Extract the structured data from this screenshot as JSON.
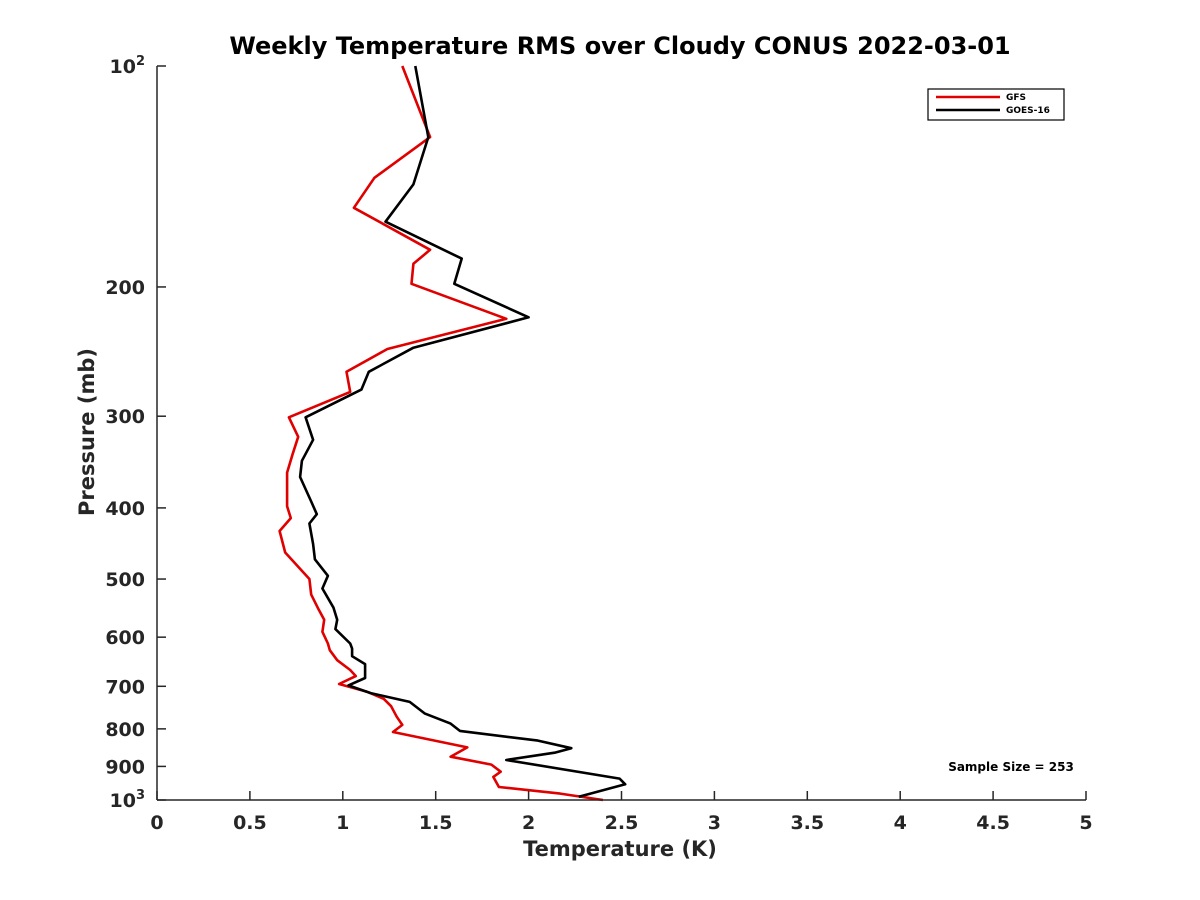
{
  "chart_data": {
    "type": "line",
    "title": "Weekly Temperature RMS over Cloudy CONUS 2022-03-01",
    "xlabel": "Temperature (K)",
    "ylabel": "Pressure (mb)",
    "xlim": [
      0,
      5
    ],
    "ylim": [
      1000,
      100
    ],
    "y_scale": "log",
    "y_reversed": true,
    "grid": false,
    "legend_position": "top-right",
    "x_ticks": [
      0,
      0.5,
      1,
      1.5,
      2,
      2.5,
      3,
      3.5,
      4,
      4.5,
      5
    ],
    "x_tick_labels": [
      "0",
      "0.5",
      "1",
      "1.5",
      "2",
      "2.5",
      "3",
      "3.5",
      "4",
      "4.5",
      "5"
    ],
    "y_ticks": [
      {
        "value": 100,
        "base": "10",
        "exp": "2"
      },
      {
        "value": 200,
        "label": "200"
      },
      {
        "value": 300,
        "label": "300"
      },
      {
        "value": 400,
        "label": "400"
      },
      {
        "value": 500,
        "label": "500"
      },
      {
        "value": 600,
        "label": "600"
      },
      {
        "value": 700,
        "label": "700"
      },
      {
        "value": 800,
        "label": "800"
      },
      {
        "value": 900,
        "label": "900"
      },
      {
        "value": 1000,
        "base": "10",
        "exp": "3"
      }
    ],
    "annotation": "Sample Size = 253",
    "series": [
      {
        "name": "GFS",
        "color": "#e00000",
        "points": [
          [
            1.32,
            100
          ],
          [
            1.47,
            125
          ],
          [
            1.17,
            142
          ],
          [
            1.06,
            156
          ],
          [
            1.47,
            178
          ],
          [
            1.38,
            186
          ],
          [
            1.37,
            198
          ],
          [
            1.88,
            221
          ],
          [
            1.24,
            243
          ],
          [
            1.02,
            261
          ],
          [
            1.04,
            278
          ],
          [
            0.71,
            301
          ],
          [
            0.76,
            320
          ],
          [
            0.73,
            338
          ],
          [
            0.7,
            358
          ],
          [
            0.7,
            380
          ],
          [
            0.7,
            398
          ],
          [
            0.72,
            413
          ],
          [
            0.66,
            430
          ],
          [
            0.69,
            460
          ],
          [
            0.82,
            500
          ],
          [
            0.83,
            525
          ],
          [
            0.87,
            550
          ],
          [
            0.9,
            568
          ],
          [
            0.89,
            590
          ],
          [
            0.92,
            612
          ],
          [
            0.93,
            625
          ],
          [
            0.97,
            645
          ],
          [
            1.04,
            665
          ],
          [
            1.07,
            678
          ],
          [
            0.98,
            695
          ],
          [
            1.13,
            712
          ],
          [
            1.22,
            728
          ],
          [
            1.26,
            745
          ],
          [
            1.29,
            770
          ],
          [
            1.32,
            790
          ],
          [
            1.27,
            808
          ],
          [
            1.67,
            848
          ],
          [
            1.58,
            873
          ],
          [
            1.8,
            895
          ],
          [
            1.85,
            915
          ],
          [
            1.81,
            930
          ],
          [
            1.84,
            960
          ],
          [
            2.17,
            980
          ],
          [
            2.4,
            1000
          ]
        ]
      },
      {
        "name": "GOES-16",
        "color": "#000000",
        "points": [
          [
            1.39,
            100
          ],
          [
            1.46,
            125
          ],
          [
            1.38,
            145
          ],
          [
            1.23,
            163
          ],
          [
            1.64,
            183
          ],
          [
            1.6,
            198
          ],
          [
            2.0,
            220
          ],
          [
            1.38,
            242
          ],
          [
            1.14,
            261
          ],
          [
            1.1,
            276
          ],
          [
            0.8,
            301
          ],
          [
            0.84,
            323
          ],
          [
            0.78,
            345
          ],
          [
            0.77,
            363
          ],
          [
            0.83,
            392
          ],
          [
            0.86,
            408
          ],
          [
            0.82,
            420
          ],
          [
            0.84,
            448
          ],
          [
            0.85,
            470
          ],
          [
            0.92,
            495
          ],
          [
            0.89,
            515
          ],
          [
            0.95,
            547
          ],
          [
            0.97,
            568
          ],
          [
            0.96,
            585
          ],
          [
            1.04,
            612
          ],
          [
            1.05,
            622
          ],
          [
            1.05,
            637
          ],
          [
            1.12,
            653
          ],
          [
            1.12,
            682
          ],
          [
            1.03,
            698
          ],
          [
            1.15,
            715
          ],
          [
            1.36,
            735
          ],
          [
            1.44,
            762
          ],
          [
            1.58,
            787
          ],
          [
            1.63,
            805
          ],
          [
            2.05,
            830
          ],
          [
            2.23,
            850
          ],
          [
            2.14,
            862
          ],
          [
            1.88,
            882
          ],
          [
            2.49,
            935
          ],
          [
            2.52,
            952
          ],
          [
            2.27,
            990
          ]
        ]
      }
    ]
  }
}
